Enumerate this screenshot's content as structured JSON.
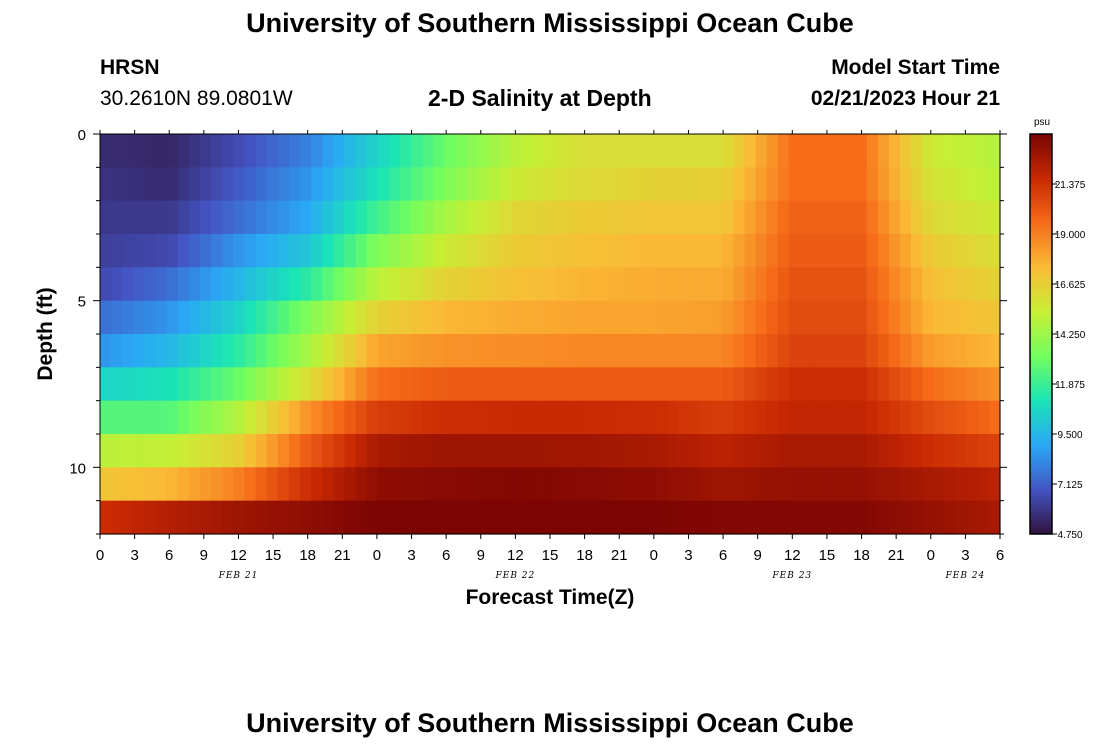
{
  "header": {
    "title": "University of Southern Mississippi Ocean Cube",
    "station": "HRSN",
    "coords": "30.2610N  89.0801W",
    "subtitle": "2-D Salinity at Depth",
    "model_start_label": "Model Start Time",
    "model_start_value": "02/21/2023 Hour 21"
  },
  "footer": {
    "title": "University of Southern Mississippi Ocean Cube"
  },
  "chart_data": {
    "type": "heatmap",
    "title": "2-D Salinity at Depth",
    "xlabel": "Forecast Time(Z)",
    "ylabel": "Depth (ft)",
    "x_tick_labels": [
      "0",
      "3",
      "6",
      "9",
      "12",
      "15",
      "18",
      "21",
      "0",
      "3",
      "6",
      "9",
      "12",
      "15",
      "18",
      "21",
      "0",
      "3",
      "6",
      "9",
      "12",
      "15",
      "18",
      "21",
      "0",
      "3",
      "6"
    ],
    "day_labels": [
      "FEB 21",
      "FEB 22",
      "FEB 23",
      "FEB 24"
    ],
    "y_tick_labels": [
      "0",
      "5",
      "10"
    ],
    "ylim": [
      0,
      12
    ],
    "colorbar": {
      "unit": "psu",
      "min": 4.75,
      "max": 23.75,
      "tick_labels": [
        "21.375",
        "19.000",
        "16.625",
        "14.250",
        "11.875",
        "9.500",
        "7.125",
        "4.750"
      ],
      "colors": [
        "#30123b",
        "#4454c4",
        "#2aa8f6",
        "#1ae4b6",
        "#72fe5e",
        "#c7ef34",
        "#fabb36",
        "#f66b19",
        "#c92903",
        "#7a0403"
      ]
    },
    "time_hours": [
      0,
      6,
      12,
      18,
      24,
      30,
      36,
      42,
      48,
      54,
      60,
      66,
      72,
      78,
      81
    ],
    "depth_layers_ft": [
      "0-1",
      "1-2",
      "2-3",
      "3-4",
      "4-5",
      "5-6",
      "6-7",
      "7-8",
      "8-9",
      "9-10",
      "10-11",
      "11-12"
    ],
    "salinity_psu": [
      [
        5.6,
        5.4,
        6.6,
        8.0,
        10.5,
        13.0,
        15.0,
        16.0,
        16.0,
        16.0,
        19.5,
        19.5,
        15.5,
        14.8,
        15.6
      ],
      [
        5.8,
        5.6,
        7.0,
        8.5,
        11.0,
        13.5,
        15.5,
        16.2,
        16.5,
        16.6,
        19.5,
        19.5,
        15.8,
        15.0,
        16.0
      ],
      [
        6.0,
        6.0,
        7.5,
        9.0,
        12.0,
        14.5,
        16.3,
        16.8,
        17.0,
        17.0,
        19.8,
        19.8,
        16.2,
        15.5,
        16.2
      ],
      [
        6.2,
        6.5,
        8.5,
        10.0,
        13.5,
        15.5,
        16.8,
        17.2,
        17.5,
        17.5,
        20.0,
        20.0,
        16.8,
        16.0,
        16.5
      ],
      [
        6.5,
        7.5,
        9.5,
        11.5,
        15.0,
        16.5,
        17.2,
        17.6,
        17.8,
        17.8,
        20.3,
        20.3,
        17.2,
        16.5,
        17.0
      ],
      [
        7.5,
        8.5,
        10.5,
        13.5,
        16.5,
        17.5,
        17.8,
        18.0,
        18.0,
        18.2,
        20.5,
        20.5,
        17.5,
        17.0,
        17.5
      ],
      [
        8.5,
        9.5,
        11.5,
        14.5,
        18.0,
        18.5,
        18.6,
        18.8,
        18.8,
        18.8,
        20.8,
        20.8,
        18.2,
        17.5,
        18.0
      ],
      [
        10.5,
        11.0,
        13.0,
        16.0,
        19.5,
        20.0,
        20.0,
        20.0,
        20.0,
        20.0,
        21.5,
        21.5,
        19.5,
        18.5,
        19.0
      ],
      [
        12.5,
        12.5,
        14.8,
        18.5,
        21.0,
        21.5,
        21.6,
        21.6,
        21.5,
        21.0,
        21.8,
        21.8,
        20.5,
        19.5,
        20.0
      ],
      [
        15.0,
        15.2,
        16.6,
        20.0,
        22.5,
        22.8,
        22.8,
        22.7,
        22.5,
        22.0,
        22.5,
        22.5,
        21.5,
        20.8,
        21.5
      ],
      [
        17.0,
        17.5,
        19.0,
        21.5,
        23.2,
        23.4,
        23.5,
        23.4,
        23.2,
        22.8,
        23.0,
        23.0,
        22.5,
        22.0,
        22.5
      ],
      [
        21.5,
        22.2,
        22.8,
        23.2,
        23.7,
        23.7,
        23.7,
        23.7,
        23.7,
        23.5,
        23.5,
        23.5,
        23.0,
        22.5,
        23.0
      ]
    ]
  }
}
